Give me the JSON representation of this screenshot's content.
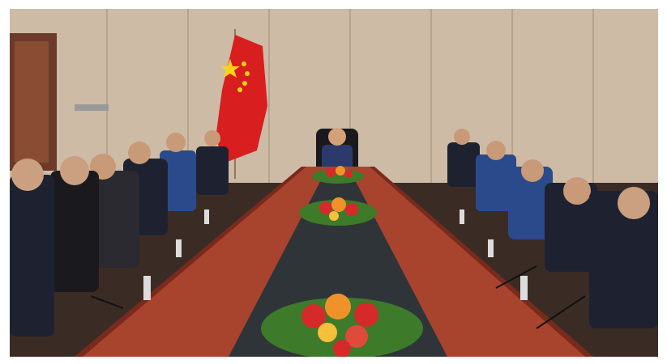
{
  "scene": {
    "subject": "conference-meeting-room",
    "colors": {
      "wall": "#cdbba6",
      "wall_panel_line": "#b7a48f",
      "floor_dark": "#3a2c25",
      "table_wood": "#a8442e",
      "table_edge": "#7a2a1c",
      "center_strip": "#2f3438",
      "flag_red": "#d81e1e",
      "flag_star": "#ffd21a",
      "suit_dark": "#1e2230",
      "suit_blue": "#2b4a8c",
      "chair_black": "#1a1a1e",
      "flower_red": "#d62a2a",
      "flower_orange": "#f0922a",
      "leaf_green": "#3d7a2a"
    }
  }
}
